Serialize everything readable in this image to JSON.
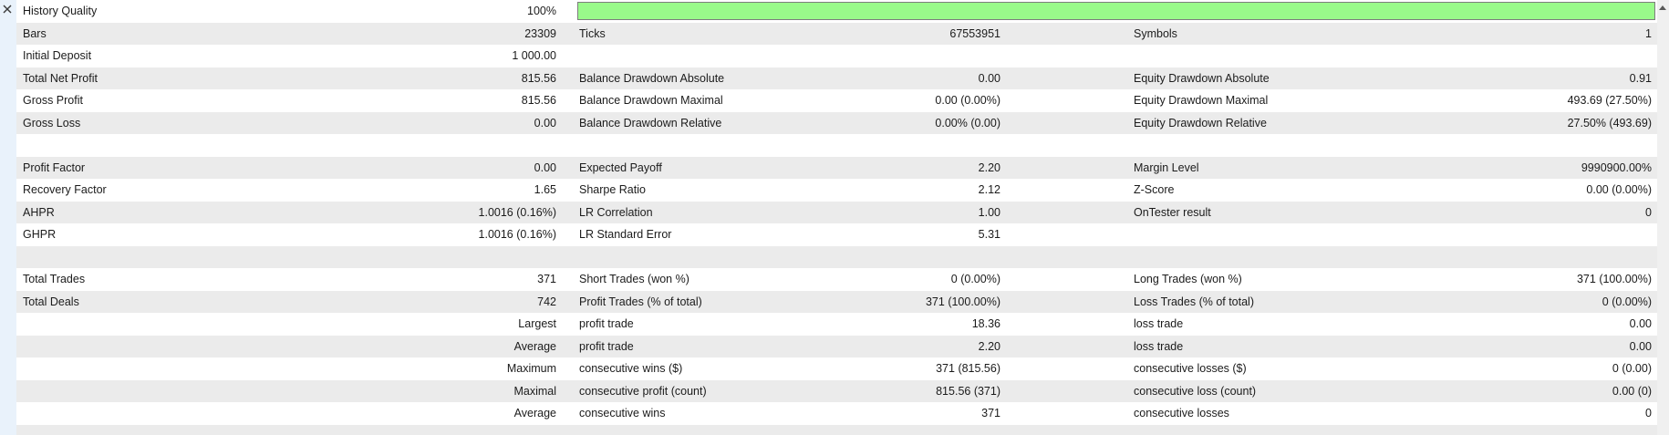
{
  "app": "MetaTrader Strategy Tester — Backtest Results",
  "colors": {
    "row_alt": "#ebebeb",
    "strip_bg": "#e9f2fb",
    "bar_fill": "#99fa8a",
    "bar_border": "#7d7d7d",
    "scrollbar_track": "#f0f0f0",
    "text": "#1b1b1b"
  },
  "history_quality": {
    "label": "History Quality",
    "value": "100%",
    "bar_percent": 100
  },
  "rows": [
    {
      "shaded": false,
      "bar": 100,
      "cells": [
        "History Quality",
        "100%",
        "",
        "",
        "",
        ""
      ]
    },
    {
      "shaded": true,
      "cells": [
        "Bars",
        "23309",
        "Ticks",
        "67553951",
        "Symbols",
        "1"
      ]
    },
    {
      "shaded": false,
      "cells": [
        "Initial Deposit",
        "1 000.00",
        "",
        "",
        "",
        ""
      ]
    },
    {
      "shaded": true,
      "cells": [
        "Total Net Profit",
        "815.56",
        "Balance Drawdown Absolute",
        "0.00",
        "Equity Drawdown Absolute",
        "0.91"
      ]
    },
    {
      "shaded": false,
      "cells": [
        "Gross Profit",
        "815.56",
        "Balance Drawdown Maximal",
        "0.00 (0.00%)",
        "Equity Drawdown Maximal",
        "493.69 (27.50%)"
      ]
    },
    {
      "shaded": true,
      "cells": [
        "Gross Loss",
        "0.00",
        "Balance Drawdown Relative",
        "0.00% (0.00)",
        "Equity Drawdown Relative",
        "27.50% (493.69)"
      ]
    },
    {
      "shaded": false,
      "cells": [
        "",
        "",
        "",
        "",
        "",
        ""
      ]
    },
    {
      "shaded": true,
      "cells": [
        "Profit Factor",
        "0.00",
        "Expected Payoff",
        "2.20",
        "Margin Level",
        "9990900.00%"
      ]
    },
    {
      "shaded": false,
      "cells": [
        "Recovery Factor",
        "1.65",
        "Sharpe Ratio",
        "2.12",
        "Z-Score",
        "0.00 (0.00%)"
      ]
    },
    {
      "shaded": true,
      "cells": [
        "AHPR",
        "1.0016 (0.16%)",
        "LR Correlation",
        "1.00",
        "OnTester result",
        "0"
      ]
    },
    {
      "shaded": false,
      "cells": [
        "GHPR",
        "1.0016 (0.16%)",
        "LR Standard Error",
        "5.31",
        "",
        ""
      ]
    },
    {
      "shaded": true,
      "cells": [
        "",
        "",
        "",
        "",
        "",
        ""
      ]
    },
    {
      "shaded": false,
      "cells": [
        "Total Trades",
        "371",
        "Short Trades (won %)",
        "0 (0.00%)",
        "Long Trades (won %)",
        "371 (100.00%)"
      ]
    },
    {
      "shaded": true,
      "cells": [
        "Total Deals",
        "742",
        "Profit Trades (% of total)",
        "371 (100.00%)",
        "Loss Trades (% of total)",
        "0 (0.00%)"
      ]
    },
    {
      "shaded": false,
      "cells": [
        "",
        "Largest",
        "profit trade",
        "18.36",
        "loss trade",
        "0.00"
      ]
    },
    {
      "shaded": true,
      "cells": [
        "",
        "Average",
        "profit trade",
        "2.20",
        "loss trade",
        "0.00"
      ]
    },
    {
      "shaded": false,
      "cells": [
        "",
        "Maximum",
        "consecutive wins ($)",
        "371 (815.56)",
        "consecutive losses ($)",
        "0 (0.00)"
      ]
    },
    {
      "shaded": true,
      "cells": [
        "",
        "Maximal",
        "consecutive profit (count)",
        "815.56 (371)",
        "consecutive loss (count)",
        "0.00 (0)"
      ]
    },
    {
      "shaded": false,
      "cells": [
        "",
        "Average",
        "consecutive wins",
        "371",
        "consecutive losses",
        "0"
      ]
    },
    {
      "shaded": true,
      "cells": [
        "",
        "",
        "",
        "",
        "",
        ""
      ]
    }
  ],
  "scrollbar": {
    "orientation": "vertical",
    "up_arrow": true
  }
}
